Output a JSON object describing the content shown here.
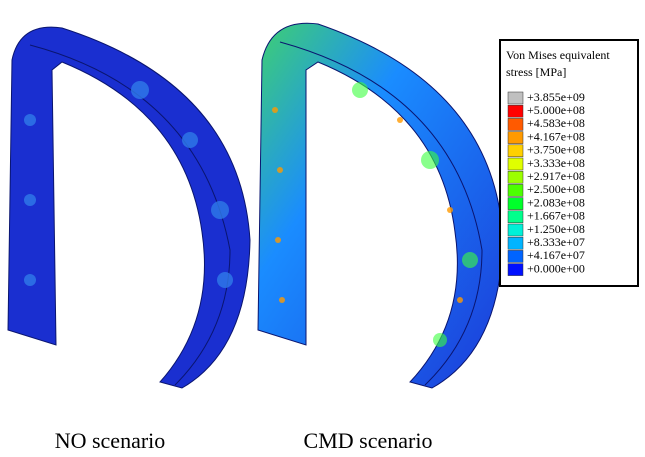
{
  "legend": {
    "title_lines": [
      "Von Mises equivalent",
      "stress [MPa]"
    ],
    "entries": [
      {
        "label": "+3.855e+09",
        "color": "#c0c0c0"
      },
      {
        "label": "+5.000e+08",
        "color": "#ff0000"
      },
      {
        "label": "+4.583e+08",
        "color": "#ff5a00"
      },
      {
        "label": "+4.167e+08",
        "color": "#ff9a00"
      },
      {
        "label": "+3.750e+08",
        "color": "#ffd000"
      },
      {
        "label": "+3.333e+08",
        "color": "#e0ff00"
      },
      {
        "label": "+2.917e+08",
        "color": "#9cff00"
      },
      {
        "label": "+2.500e+08",
        "color": "#4cff00"
      },
      {
        "label": "+2.083e+08",
        "color": "#00ff2a"
      },
      {
        "label": "+1.667e+08",
        "color": "#00ff8c"
      },
      {
        "label": "+1.250e+08",
        "color": "#00f0d8"
      },
      {
        "label": "+8.333e+07",
        "color": "#00b4ff"
      },
      {
        "label": "+4.167e+07",
        "color": "#0064ff"
      },
      {
        "label": "+0.000e+00",
        "color": "#0010ff"
      }
    ]
  },
  "captions": [
    "NO scenario",
    "CMD scenario"
  ]
}
